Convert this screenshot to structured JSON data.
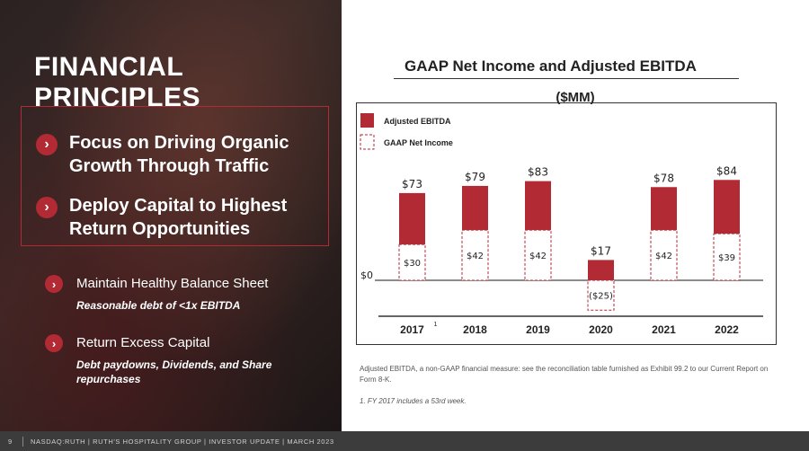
{
  "left": {
    "title": "FINANCIAL PRINCIPLES",
    "focus_items": [
      {
        "label": "Focus on Driving Organic Growth Through Traffic"
      },
      {
        "label": "Deploy Capital to Highest Return Opportunities"
      }
    ],
    "items": [
      {
        "label": "Maintain Healthy Balance Sheet",
        "sub": "Reasonable debt of <1x EBITDA"
      },
      {
        "label": "Return Excess Capital",
        "sub": "Debt paydowns, Dividends, and Share repurchases"
      }
    ]
  },
  "chart_data": {
    "type": "bar",
    "title": "GAAP Net Income and Adjusted EBITDA",
    "subtitle": "($MM)",
    "categories": [
      "2017",
      "2018",
      "2019",
      "2020",
      "2021",
      "2022"
    ],
    "category_footnote_mark": {
      "category": "2017",
      "mark": "1"
    },
    "series": [
      {
        "name": "Adjusted EBITDA",
        "values": [
          73,
          79,
          83,
          17,
          78,
          84
        ],
        "labels": [
          "$73",
          "$79",
          "$83",
          "$17",
          "$78",
          "$84"
        ],
        "style": "solid"
      },
      {
        "name": "GAAP Net Income",
        "values": [
          30,
          42,
          42,
          -25,
          42,
          39
        ],
        "labels": [
          "$30",
          "$42",
          "$42",
          "($25)",
          "$42",
          "$39"
        ],
        "style": "dashed"
      }
    ],
    "zero_label": "$0",
    "legend_position": "top-left",
    "xlabel": "",
    "ylabel": "",
    "ylim": [
      -30,
      90
    ]
  },
  "colors": {
    "accent": "#b22a34",
    "dash": "#b22a34",
    "axis": "#333333"
  },
  "footnotes": {
    "note1": "Adjusted EBITDA, a non-GAAP financial measure: see the reconciliation table furnished as Exhibit 99.2 to our Current Report on Form 8-K.",
    "note2": "1. FY 2017 includes a 53rd week."
  },
  "footer": {
    "page": "9",
    "text": "NASDAQ:RUTH | RUTH'S HOSPITALITY GROUP | INVESTOR UPDATE | MARCH 2023"
  }
}
